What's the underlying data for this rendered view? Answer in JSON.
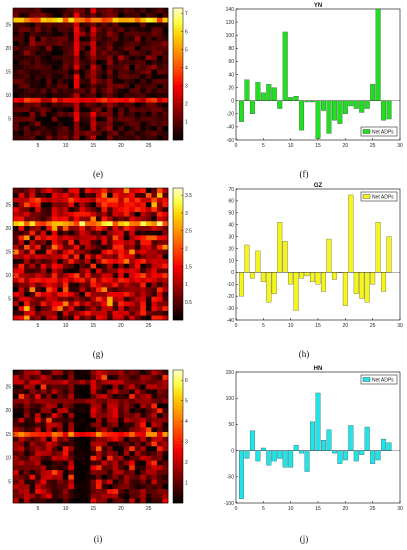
{
  "colorbar_colors": [
    "#000000",
    "#3d0000",
    "#7a0000",
    "#b80000",
    "#f20000",
    "#ff3300",
    "#ff6a00",
    "#ffa000",
    "#ffd200",
    "#ffff4a",
    "#ffffc8"
  ],
  "captions": {
    "e": "(e)",
    "f": "(f)",
    "g": "(g)",
    "h": "(h)",
    "i": "(i)",
    "j": "(j)"
  },
  "chart_data": [
    {
      "id": "e",
      "type": "heatmap",
      "caption": "(e)",
      "grid_size": 28,
      "x_ticks": [
        5,
        10,
        15,
        20,
        25
      ],
      "y_ticks": [
        5,
        10,
        15,
        20,
        25
      ],
      "colorbar_ticks": [
        1,
        2,
        3,
        4,
        5,
        6,
        7
      ],
      "vmin": 0,
      "vmax": 7.3,
      "hot_rows": [
        {
          "row": 26,
          "value": 5.8
        },
        {
          "row": 9,
          "value": 3.4
        }
      ],
      "hot_cols": [
        {
          "col": 12,
          "value": 2.6
        },
        {
          "col": 15,
          "value": 2.4
        },
        {
          "col": 18,
          "value": 1.5
        }
      ],
      "base_level": 0.6
    },
    {
      "id": "f",
      "type": "bar",
      "caption": "(f)",
      "title": "YN",
      "legend": "Net ADPs",
      "legend_position": "bottom-right",
      "color": "#22dd22",
      "xlim": [
        0,
        30
      ],
      "ylim": [
        -60,
        140
      ],
      "x_ticks": [
        0,
        5,
        10,
        15,
        20,
        25,
        30
      ],
      "y_ticks": [
        -60,
        -40,
        -20,
        0,
        20,
        40,
        60,
        80,
        100,
        120,
        140
      ],
      "x": [
        1,
        2,
        3,
        4,
        5,
        6,
        7,
        8,
        9,
        10,
        11,
        12,
        13,
        14,
        15,
        16,
        17,
        18,
        19,
        20,
        21,
        22,
        23,
        24,
        25,
        26,
        27,
        28
      ],
      "values": [
        -32,
        32,
        -20,
        28,
        12,
        25,
        20,
        -12,
        105,
        5,
        7,
        -45,
        -2,
        -2,
        -58,
        -15,
        -50,
        -30,
        -35,
        -20,
        -8,
        -12,
        -18,
        -12,
        25,
        140,
        -30,
        -28
      ]
    },
    {
      "id": "g",
      "type": "heatmap",
      "caption": "(g)",
      "grid_size": 28,
      "x_ticks": [
        5,
        10,
        15,
        20,
        25
      ],
      "y_ticks": [
        5,
        10,
        15,
        20,
        25
      ],
      "colorbar_ticks": [
        0.5,
        1,
        1.5,
        2,
        2.5,
        3,
        3.5
      ],
      "vmin": 0,
      "vmax": 3.7,
      "hot_rows": [
        {
          "row": 21,
          "value": 3.2
        },
        {
          "row": 26,
          "value": 1.8
        },
        {
          "row": 9,
          "value": 1.6
        }
      ],
      "hot_cols": [
        {
          "col": 8,
          "value": 1.3
        },
        {
          "col": 20,
          "value": 1.2
        },
        {
          "col": 22,
          "value": 1.2
        }
      ],
      "base_level": 0.8
    },
    {
      "id": "h",
      "type": "bar",
      "caption": "(h)",
      "title": "GZ",
      "legend": "Net ADPs",
      "legend_position": "top-right",
      "color": "#f5f51e",
      "xlim": [
        0,
        30
      ],
      "ylim": [
        -40,
        70
      ],
      "x_ticks": [
        0,
        5,
        10,
        15,
        20,
        25,
        30
      ],
      "y_ticks": [
        -40,
        -30,
        -20,
        -10,
        0,
        10,
        20,
        30,
        40,
        50,
        60,
        70
      ],
      "x": [
        1,
        2,
        3,
        4,
        5,
        6,
        7,
        8,
        9,
        10,
        11,
        12,
        13,
        14,
        15,
        16,
        17,
        18,
        19,
        20,
        21,
        22,
        23,
        24,
        25,
        26,
        27,
        28
      ],
      "values": [
        -20,
        23,
        -5,
        18,
        -8,
        -25,
        -18,
        42,
        26,
        -10,
        -32,
        -5,
        -3,
        -8,
        -10,
        -16,
        28,
        -6,
        0,
        -28,
        65,
        -18,
        -22,
        -25,
        -10,
        42,
        -16,
        30
      ]
    },
    {
      "id": "i",
      "type": "heatmap",
      "caption": "(i)",
      "grid_size": 28,
      "x_ticks": [
        5,
        10,
        15,
        20,
        25
      ],
      "y_ticks": [
        5,
        10,
        15,
        20,
        25
      ],
      "colorbar_ticks": [
        1,
        2,
        3,
        4,
        5,
        6
      ],
      "vmin": 0,
      "vmax": 6.5,
      "hot_rows": [
        {
          "row": 15,
          "value": 4.0
        },
        {
          "row": 26,
          "value": 2.0
        },
        {
          "row": 22,
          "value": 1.6
        }
      ],
      "hot_cols": [
        {
          "col": 16,
          "value": 1.6
        }
      ],
      "dark_cols": [
        12,
        13,
        14
      ],
      "base_level": 1.0
    },
    {
      "id": "j",
      "type": "bar",
      "caption": "(j)",
      "title": "HN",
      "legend": "Net ADPs",
      "legend_position": "top-right",
      "color": "#22e3e8",
      "xlim": [
        0,
        30
      ],
      "ylim": [
        -100,
        150
      ],
      "x_ticks": [
        0,
        5,
        10,
        15,
        20,
        25,
        30
      ],
      "y_ticks": [
        -100,
        -50,
        0,
        50,
        100,
        150
      ],
      "x": [
        1,
        2,
        3,
        4,
        5,
        6,
        7,
        8,
        9,
        10,
        11,
        12,
        13,
        14,
        15,
        16,
        17,
        18,
        19,
        20,
        21,
        22,
        23,
        24,
        25,
        26,
        27,
        28
      ],
      "values": [
        -92,
        -15,
        38,
        -20,
        5,
        -28,
        -20,
        -15,
        -32,
        -32,
        10,
        -5,
        -40,
        55,
        110,
        20,
        40,
        -5,
        -25,
        -18,
        48,
        -20,
        -8,
        45,
        -25,
        -18,
        22,
        15
      ]
    }
  ]
}
